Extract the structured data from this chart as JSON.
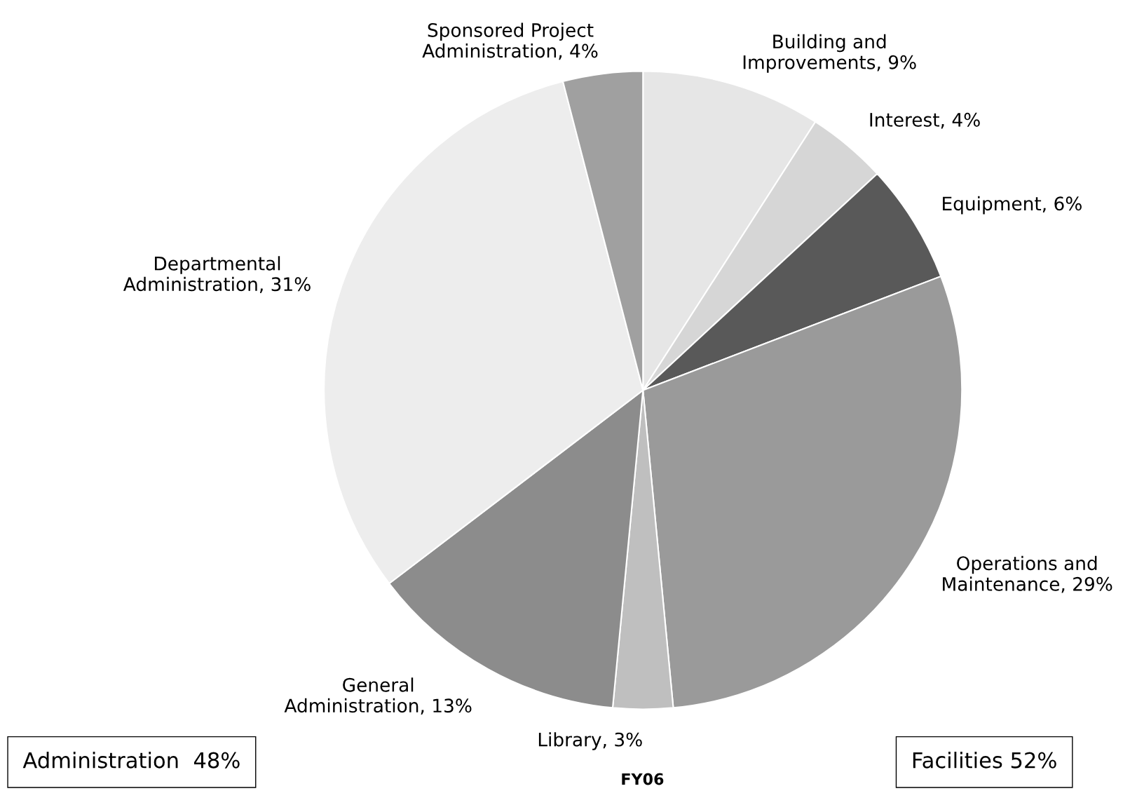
{
  "chart_data": {
    "type": "pie",
    "title": "FY06",
    "categories": [
      "Building and Improvements, 9%",
      "Interest, 4%",
      "Equipment, 6%",
      "Operations and Maintenance, 29%",
      "Library, 3%",
      "General Administration, 13%",
      "Departmental Administration, 31%",
      "Sponsored Project Administration, 4%"
    ],
    "values": [
      9,
      4,
      6,
      29,
      3,
      13,
      31,
      4
    ],
    "colors": [
      "#e6e6e6",
      "#d6d6d6",
      "#595959",
      "#9a9a9a",
      "#bfbfbf",
      "#8c8c8c",
      "#ededed",
      "#a0a0a0"
    ],
    "annotations": [
      "Administration  48%",
      "Facilities 52%"
    ]
  }
}
